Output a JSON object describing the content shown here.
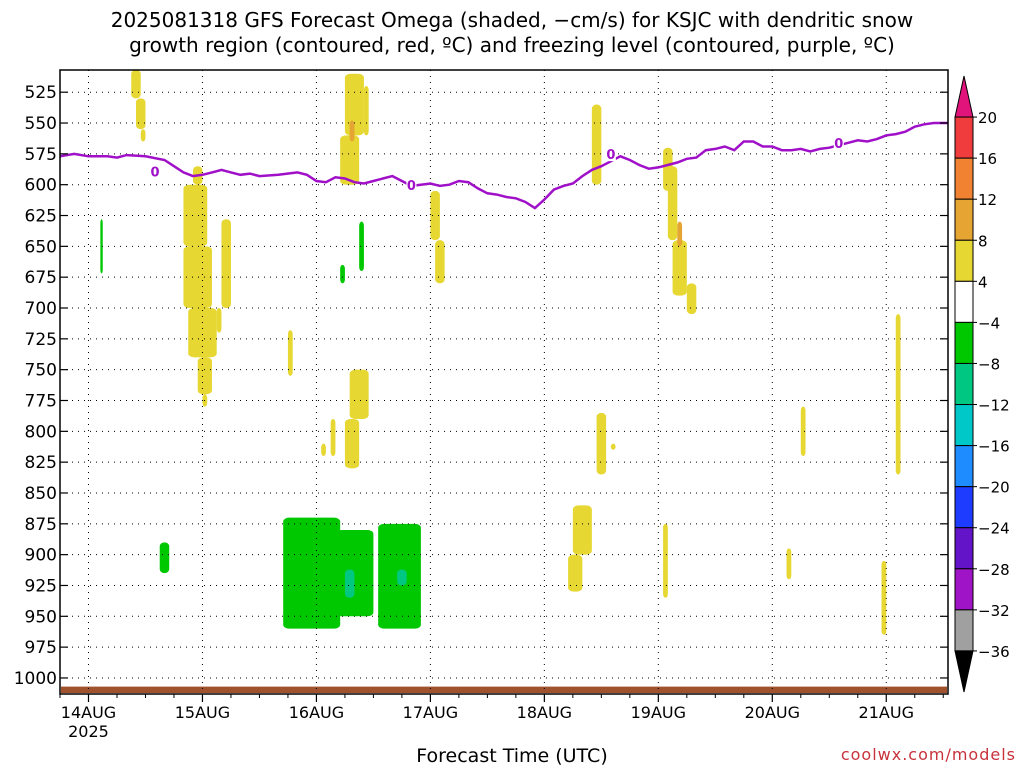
{
  "title_line1": "2025081318 GFS Forecast Omega (shaded, −cm/s) for KSJC with dendritic snow",
  "title_line2": "growth region (contoured, red, ºC) and freezing level (contoured, purple, ºC)",
  "credit": "coolwx.com/models",
  "chart_data": {
    "type": "heatmap",
    "title": "2025081318 GFS Forecast Omega (shaded, −cm/s) for KSJC with dendritic snow growth region (contoured, red, ºC) and freezing level (contoured, purple, ºC)",
    "xlabel": "Forecast Time (UTC)",
    "ylabel": "",
    "x_ticks": [
      "14AUG",
      "15AUG",
      "16AUG",
      "17AUG",
      "18AUG",
      "19AUG",
      "20AUG",
      "21AUG"
    ],
    "x_year_label": "2025",
    "x_range_hours": [
      -6,
      181
    ],
    "y_ticks": [
      525,
      550,
      575,
      600,
      625,
      650,
      675,
      700,
      725,
      750,
      775,
      800,
      825,
      850,
      875,
      900,
      925,
      950,
      975,
      1000
    ],
    "y_range": [
      507,
      1013
    ],
    "y_axis_reversed": true,
    "grid": "dotted",
    "colorbar": {
      "labels": [
        "20",
        "16",
        "12",
        "8",
        "4",
        "−4",
        "−8",
        "−12",
        "−16",
        "−20",
        "−24",
        "−28",
        "−32",
        "−36"
      ],
      "bins": [
        {
          "lo": 20,
          "hi": 30,
          "color": "#e0147a"
        },
        {
          "lo": 16,
          "hi": 20,
          "color": "#f03c3c"
        },
        {
          "lo": 12,
          "hi": 16,
          "color": "#f08232"
        },
        {
          "lo": 8,
          "hi": 12,
          "color": "#e6a532"
        },
        {
          "lo": 4,
          "hi": 8,
          "color": "#e6d732"
        },
        {
          "lo": -4,
          "hi": 4,
          "color": "#ffffff"
        },
        {
          "lo": -8,
          "hi": -4,
          "color": "#00c800"
        },
        {
          "lo": -12,
          "hi": -8,
          "color": "#00c882"
        },
        {
          "lo": -16,
          "hi": -12,
          "color": "#00c8c8"
        },
        {
          "lo": -20,
          "hi": -16,
          "color": "#1e8cff"
        },
        {
          "lo": -24,
          "hi": -20,
          "color": "#1e3cff"
        },
        {
          "lo": -28,
          "hi": -24,
          "color": "#6414c8"
        },
        {
          "lo": -32,
          "hi": -28,
          "color": "#a014c8"
        },
        {
          "lo": -36,
          "hi": -32,
          "color": "#a0a0a0"
        },
        {
          "lo": -46,
          "hi": -36,
          "color": "#000000"
        }
      ]
    },
    "freezing_level": {
      "label": "0",
      "color": "#a010c8",
      "points": [
        [
          -6,
          577
        ],
        [
          -3,
          575
        ],
        [
          0,
          577
        ],
        [
          4,
          577
        ],
        [
          6,
          578
        ],
        [
          8,
          576
        ],
        [
          12,
          577
        ],
        [
          16,
          580
        ],
        [
          18,
          585
        ],
        [
          20,
          590
        ],
        [
          22,
          593
        ],
        [
          24,
          592
        ],
        [
          26,
          590
        ],
        [
          28,
          588
        ],
        [
          30,
          590
        ],
        [
          32,
          592
        ],
        [
          34,
          591
        ],
        [
          36,
          593
        ],
        [
          40,
          592
        ],
        [
          44,
          590
        ],
        [
          46,
          592
        ],
        [
          48,
          597
        ],
        [
          50,
          598
        ],
        [
          52,
          594
        ],
        [
          54,
          595
        ],
        [
          56,
          598
        ],
        [
          58,
          599
        ],
        [
          60,
          597
        ],
        [
          62,
          595
        ],
        [
          64,
          593
        ],
        [
          66,
          597
        ],
        [
          68,
          601
        ],
        [
          70,
          600
        ],
        [
          72,
          599
        ],
        [
          74,
          601
        ],
        [
          76,
          600
        ],
        [
          78,
          597
        ],
        [
          80,
          598
        ],
        [
          82,
          603
        ],
        [
          84,
          607
        ],
        [
          86,
          608
        ],
        [
          88,
          610
        ],
        [
          90,
          611
        ],
        [
          92,
          614
        ],
        [
          94,
          619
        ],
        [
          96,
          612
        ],
        [
          98,
          604
        ],
        [
          100,
          601
        ],
        [
          102,
          599
        ],
        [
          104,
          593
        ],
        [
          106,
          588
        ],
        [
          108,
          585
        ],
        [
          110,
          581
        ],
        [
          112,
          577
        ],
        [
          114,
          580
        ],
        [
          116,
          584
        ],
        [
          118,
          587
        ],
        [
          120,
          586
        ],
        [
          122,
          584
        ],
        [
          124,
          582
        ],
        [
          126,
          579
        ],
        [
          128,
          578
        ],
        [
          130,
          572
        ],
        [
          132,
          571
        ],
        [
          134,
          569
        ],
        [
          136,
          572
        ],
        [
          138,
          565
        ],
        [
          140,
          565
        ],
        [
          142,
          569
        ],
        [
          144,
          569
        ],
        [
          146,
          572
        ],
        [
          148,
          572
        ],
        [
          150,
          571
        ],
        [
          152,
          573
        ],
        [
          154,
          571
        ],
        [
          156,
          570
        ],
        [
          158,
          568
        ],
        [
          160,
          566
        ],
        [
          162,
          564
        ],
        [
          164,
          565
        ],
        [
          166,
          563
        ],
        [
          168,
          560
        ],
        [
          170,
          559
        ],
        [
          172,
          557
        ],
        [
          174,
          553
        ],
        [
          176,
          551
        ],
        [
          178,
          550
        ],
        [
          181,
          550
        ]
      ],
      "label_positions": [
        [
          14,
          590
        ],
        [
          68,
          601
        ],
        [
          110,
          576
        ],
        [
          158,
          567
        ]
      ]
    },
    "omega_cells": [
      {
        "x": [
          9,
          11
        ],
        "y": [
          507,
          530
        ],
        "value": 5
      },
      {
        "x": [
          10,
          12
        ],
        "y": [
          530,
          555
        ],
        "value": 5
      },
      {
        "x": [
          11,
          12
        ],
        "y": [
          555,
          565
        ],
        "value": 5
      },
      {
        "x": [
          2.5,
          3
        ],
        "y": [
          628,
          672
        ],
        "value": -5
      },
      {
        "x": [
          22,
          24
        ],
        "y": [
          585,
          600
        ],
        "value": 5
      },
      {
        "x": [
          20,
          25
        ],
        "y": [
          600,
          650
        ],
        "value": 5
      },
      {
        "x": [
          20,
          26
        ],
        "y": [
          650,
          700
        ],
        "value": 5
      },
      {
        "x": [
          21,
          27
        ],
        "y": [
          700,
          740
        ],
        "value": 5
      },
      {
        "x": [
          23,
          26
        ],
        "y": [
          740,
          770
        ],
        "value": 5
      },
      {
        "x": [
          24,
          25
        ],
        "y": [
          770,
          780
        ],
        "value": 5
      },
      {
        "x": [
          28,
          30
        ],
        "y": [
          628,
          700
        ],
        "value": 5
      },
      {
        "x": [
          27,
          28
        ],
        "y": [
          700,
          720
        ],
        "value": 5
      },
      {
        "x": [
          42,
          43
        ],
        "y": [
          718,
          755
        ],
        "value": 5
      },
      {
        "x": [
          54,
          58
        ],
        "y": [
          510,
          560
        ],
        "value": 5
      },
      {
        "x": [
          53,
          57
        ],
        "y": [
          560,
          600
        ],
        "value": 5
      },
      {
        "x": [
          55,
          56
        ],
        "y": [
          548,
          565
        ],
        "value": 9
      },
      {
        "x": [
          58,
          59
        ],
        "y": [
          520,
          560
        ],
        "value": 5
      },
      {
        "x": [
          57,
          58
        ],
        "y": [
          630,
          670
        ],
        "value": -5
      },
      {
        "x": [
          53,
          54
        ],
        "y": [
          665,
          680
        ],
        "value": -5
      },
      {
        "x": [
          55,
          59
        ],
        "y": [
          750,
          790
        ],
        "value": 5
      },
      {
        "x": [
          54,
          57
        ],
        "y": [
          790,
          830
        ],
        "value": 5
      },
      {
        "x": [
          51,
          52
        ],
        "y": [
          790,
          820
        ],
        "value": 5
      },
      {
        "x": [
          49,
          50
        ],
        "y": [
          810,
          820
        ],
        "value": 5
      },
      {
        "x": [
          72,
          74
        ],
        "y": [
          605,
          645
        ],
        "value": 5
      },
      {
        "x": [
          73,
          75
        ],
        "y": [
          645,
          680
        ],
        "value": 5
      },
      {
        "x": [
          106,
          108
        ],
        "y": [
          535,
          600
        ],
        "value": 5
      },
      {
        "x": [
          107,
          109
        ],
        "y": [
          785,
          835
        ],
        "value": 5
      },
      {
        "x": [
          110,
          111
        ],
        "y": [
          810,
          815
        ],
        "value": 5
      },
      {
        "x": [
          102,
          106
        ],
        "y": [
          860,
          900
        ],
        "value": 5
      },
      {
        "x": [
          101,
          104
        ],
        "y": [
          900,
          930
        ],
        "value": 5
      },
      {
        "x": [
          121,
          123
        ],
        "y": [
          570,
          605
        ],
        "value": 5
      },
      {
        "x": [
          122,
          124
        ],
        "y": [
          585,
          645
        ],
        "value": 5
      },
      {
        "x": [
          123,
          126
        ],
        "y": [
          645,
          690
        ],
        "value": 5
      },
      {
        "x": [
          124,
          125
        ],
        "y": [
          630,
          650
        ],
        "value": 9
      },
      {
        "x": [
          126,
          128
        ],
        "y": [
          680,
          705
        ],
        "value": 5
      },
      {
        "x": [
          121,
          122
        ],
        "y": [
          875,
          935
        ],
        "value": 5
      },
      {
        "x": [
          150,
          151
        ],
        "y": [
          780,
          820
        ],
        "value": 5
      },
      {
        "x": [
          147,
          148
        ],
        "y": [
          895,
          920
        ],
        "value": 5
      },
      {
        "x": [
          170,
          171
        ],
        "y": [
          705,
          835
        ],
        "value": 5
      },
      {
        "x": [
          167,
          168
        ],
        "y": [
          905,
          965
        ],
        "value": 5
      },
      {
        "x": [
          15,
          17
        ],
        "y": [
          890,
          915
        ],
        "value": -5
      },
      {
        "x": [
          41,
          53
        ],
        "y": [
          870,
          960
        ],
        "value": -5
      },
      {
        "x": [
          52,
          60
        ],
        "y": [
          880,
          950
        ],
        "value": -5
      },
      {
        "x": [
          54,
          56
        ],
        "y": [
          912,
          935
        ],
        "value": -10
      },
      {
        "x": [
          61,
          70
        ],
        "y": [
          875,
          960
        ],
        "value": -5
      },
      {
        "x": [
          65,
          67
        ],
        "y": [
          912,
          925
        ],
        "value": -10
      }
    ],
    "surface": {
      "color": "#a0522d",
      "pressure_top": 1007
    }
  }
}
